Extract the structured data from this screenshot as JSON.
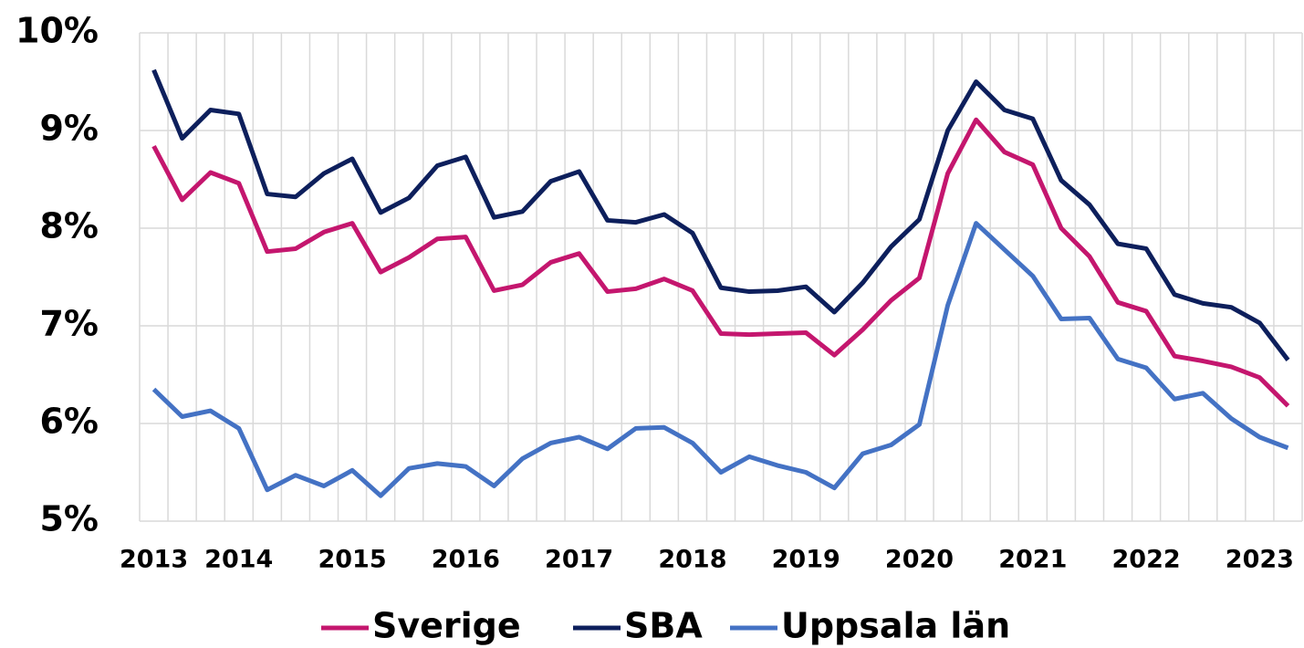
{
  "chart_data": {
    "type": "line",
    "categories": [
      "2013",
      null,
      null,
      "2014",
      null,
      null,
      null,
      "2015",
      null,
      null,
      null,
      "2016",
      null,
      null,
      null,
      "2017",
      null,
      null,
      null,
      "2018",
      null,
      null,
      null,
      "2019",
      null,
      null,
      null,
      "2020",
      null,
      null,
      null,
      "2021",
      null,
      null,
      null,
      "2022",
      null,
      null,
      null,
      "2023",
      null
    ],
    "series": [
      {
        "name": "Sverige",
        "color": "#c4166e",
        "values": [
          8.84,
          8.29,
          8.57,
          8.46,
          7.76,
          7.79,
          7.96,
          8.05,
          7.55,
          7.7,
          7.89,
          7.91,
          7.36,
          7.42,
          7.65,
          7.74,
          7.35,
          7.38,
          7.48,
          7.36,
          6.92,
          6.91,
          6.92,
          6.93,
          6.7,
          6.96,
          7.26,
          7.49,
          8.56,
          9.11,
          8.78,
          8.65,
          8.0,
          7.71,
          7.24,
          7.15,
          6.69,
          6.64,
          6.58,
          6.47,
          6.18
        ]
      },
      {
        "name": "SBA",
        "color": "#0d1f5c",
        "values": [
          9.62,
          8.92,
          9.21,
          9.17,
          8.35,
          8.32,
          8.56,
          8.71,
          8.16,
          8.31,
          8.64,
          8.73,
          8.11,
          8.17,
          8.48,
          8.58,
          8.08,
          8.06,
          8.14,
          7.95,
          7.39,
          7.35,
          7.36,
          7.4,
          7.14,
          7.44,
          7.81,
          8.09,
          9.0,
          9.5,
          9.21,
          9.12,
          8.49,
          8.24,
          7.84,
          7.79,
          7.32,
          7.23,
          7.19,
          7.03,
          6.65
        ]
      },
      {
        "name": "Uppsala län",
        "color": "#4472c4",
        "values": [
          6.35,
          6.07,
          6.13,
          5.95,
          5.32,
          5.47,
          5.36,
          5.52,
          5.26,
          5.54,
          5.59,
          5.56,
          5.36,
          5.64,
          5.8,
          5.86,
          5.74,
          5.95,
          5.96,
          5.8,
          5.5,
          5.66,
          5.57,
          5.5,
          5.34,
          5.69,
          5.78,
          5.99,
          7.21,
          8.05,
          7.78,
          7.51,
          7.07,
          7.08,
          6.66,
          6.57,
          6.25,
          6.31,
          6.05,
          5.86,
          5.75
        ]
      }
    ],
    "ylim": [
      5,
      10
    ],
    "yticks": [
      {
        "value": 5,
        "label": "5%"
      },
      {
        "value": 6,
        "label": "6%"
      },
      {
        "value": 7,
        "label": "7%"
      },
      {
        "value": 8,
        "label": "8%"
      },
      {
        "value": 9,
        "label": "9%"
      },
      {
        "value": 10,
        "label": "10%"
      }
    ],
    "grid": true,
    "legend": "bottom"
  }
}
